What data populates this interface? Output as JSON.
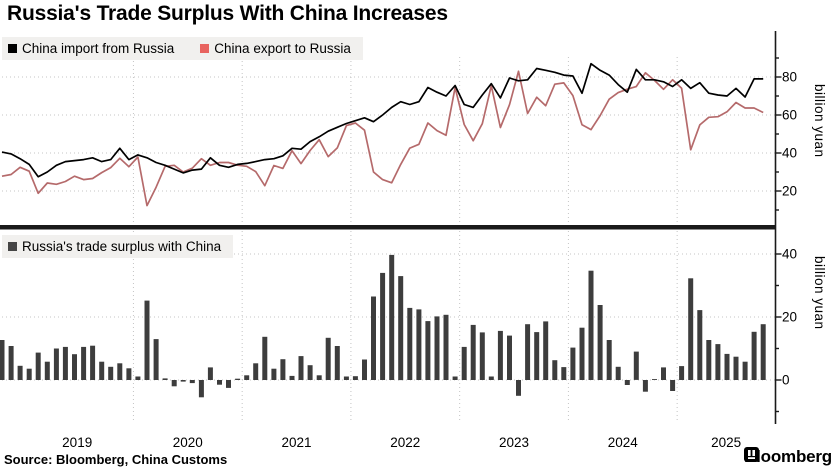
{
  "title": "Russia's Trade Surplus With China Increases",
  "source_note": "Source: Bloomberg, China Customs",
  "brand": {
    "name": "Bloomberg"
  },
  "colors": {
    "import_line": "#000000",
    "export_line": "#b56a6b",
    "export_marker": "#e8635f",
    "surplus_bar": "#3d3d3d",
    "surplus_marker": "#454545",
    "legend_bg": "#f1f0ee",
    "grid": "#c4c4c4",
    "axis": "#1a1a1a",
    "separator": "#1a1a1a"
  },
  "legend_top": [
    {
      "label": "China import from Russia",
      "color": "#000000"
    },
    {
      "label": "China export to Russia",
      "color": "#e8635f"
    }
  ],
  "legend_bottom": [
    {
      "label": "Russia's trade surplus with China",
      "color": "#454545"
    }
  ],
  "axes": {
    "y_unit_top": "billion yuan",
    "y_unit_bottom": "billion yuan",
    "top_ticks": [
      20,
      40,
      60,
      80
    ],
    "top_minor_ticks": [
      10,
      30,
      50,
      70,
      90
    ],
    "bottom_ticks": [
      0,
      20,
      40
    ],
    "bottom_minor_ticks": [
      -10,
      10,
      30
    ],
    "years": [
      "2019",
      "2020",
      "2021",
      "2022",
      "2023",
      "2024",
      "2025"
    ]
  },
  "chart_data": [
    {
      "type": "line",
      "title": "China-Russia monthly trade",
      "ylabel": "billion yuan",
      "ylim": [
        10,
        90
      ],
      "x": {
        "start": "2018-10",
        "end": "2025-10",
        "freq": "monthly",
        "n": 85
      },
      "series": [
        {
          "name": "China import from Russia",
          "color": "#000000",
          "values": [
            40.5,
            39.5,
            37,
            34,
            27.5,
            30,
            33.5,
            35.5,
            36,
            36.5,
            37.5,
            35.5,
            36.5,
            42.5,
            36.5,
            39,
            37.5,
            35,
            33.5,
            31.5,
            29.5,
            31,
            31.5,
            37.5,
            33.5,
            32.5,
            34,
            34.5,
            35.5,
            36.5,
            37,
            38.5,
            42.5,
            42,
            46,
            48.5,
            51.5,
            53.5,
            55.5,
            57,
            58.5,
            56.5,
            60,
            64,
            67,
            65.5,
            67,
            74.5,
            72,
            70,
            75.5,
            65.5,
            64,
            70.5,
            76.5,
            69,
            79.5,
            78,
            78.5,
            84.5,
            83.5,
            82.5,
            81,
            80.5,
            71.5,
            87,
            83.5,
            81,
            76,
            72,
            84,
            78.5,
            78.5,
            77.5,
            75,
            78.5,
            74,
            77,
            71.5,
            70.5,
            70,
            74,
            69.5,
            79,
            79
          ]
        },
        {
          "name": "China export to Russia",
          "color": "#b56a6b",
          "values": [
            27.8,
            28.7,
            32.5,
            30.4,
            18.8,
            24.2,
            23.5,
            25,
            27.8,
            26,
            26.6,
            29.7,
            32.3,
            37.2,
            32.8,
            37.9,
            12.3,
            22,
            33,
            33.5,
            30,
            32,
            37,
            33.5,
            35,
            35,
            33.6,
            33,
            30.2,
            22.8,
            33.4,
            31.9,
            41.2,
            34.4,
            41.3,
            47,
            38.1,
            42.7,
            54.4,
            55.8,
            52,
            30,
            26,
            24.3,
            34,
            42.6,
            44.6,
            55.8,
            51.8,
            49.3,
            74.4,
            55,
            46.5,
            55.4,
            75.4,
            53.4,
            65.4,
            83,
            60.8,
            69.3,
            64.9,
            76.2,
            76.9,
            70.2,
            54.9,
            52.3,
            59.7,
            68.3,
            71.8,
            73.6,
            75,
            82.2,
            78.2,
            73.5,
            78.5,
            74.1,
            41.7,
            54.8,
            58.8,
            59.1,
            61.7,
            66.6,
            63.7,
            63.7,
            61.3
          ]
        }
      ]
    },
    {
      "type": "bar",
      "title": "Russia's trade surplus with China",
      "ylabel": "billion yuan",
      "ylim": [
        -13,
        47
      ],
      "x": {
        "start": "2018-10",
        "end": "2025-10",
        "freq": "monthly",
        "n": 85
      },
      "series": [
        {
          "name": "Russia's trade surplus with China",
          "color": "#3d3d3d",
          "values": [
            12.7,
            10.8,
            4.5,
            3.6,
            8.7,
            5.8,
            10,
            10.5,
            8.2,
            10.5,
            10.9,
            5.8,
            4.2,
            5.3,
            3.7,
            1.1,
            25.2,
            13,
            0.5,
            -2,
            -0.5,
            -1,
            -5.5,
            4,
            -1.5,
            -2.5,
            0.4,
            1.5,
            5.3,
            13.7,
            3.6,
            6.6,
            1.3,
            7.6,
            4.7,
            1.5,
            13.4,
            10.8,
            1.1,
            1.2,
            6.5,
            26.5,
            34,
            39.7,
            33,
            22.9,
            22.4,
            18.7,
            20.2,
            20.7,
            1.1,
            10.5,
            17.5,
            15.1,
            1.1,
            15.6,
            14.1,
            -5,
            17.7,
            15.2,
            18.6,
            6.3,
            4.1,
            10.3,
            16.6,
            34.7,
            23.8,
            12.7,
            4.2,
            -1.6,
            9,
            -3.7,
            0.3,
            4,
            -3.5,
            4.4,
            32.3,
            22.2,
            12.7,
            11.4,
            8.3,
            7.4,
            5.8,
            15.3,
            17.7
          ]
        }
      ]
    }
  ]
}
